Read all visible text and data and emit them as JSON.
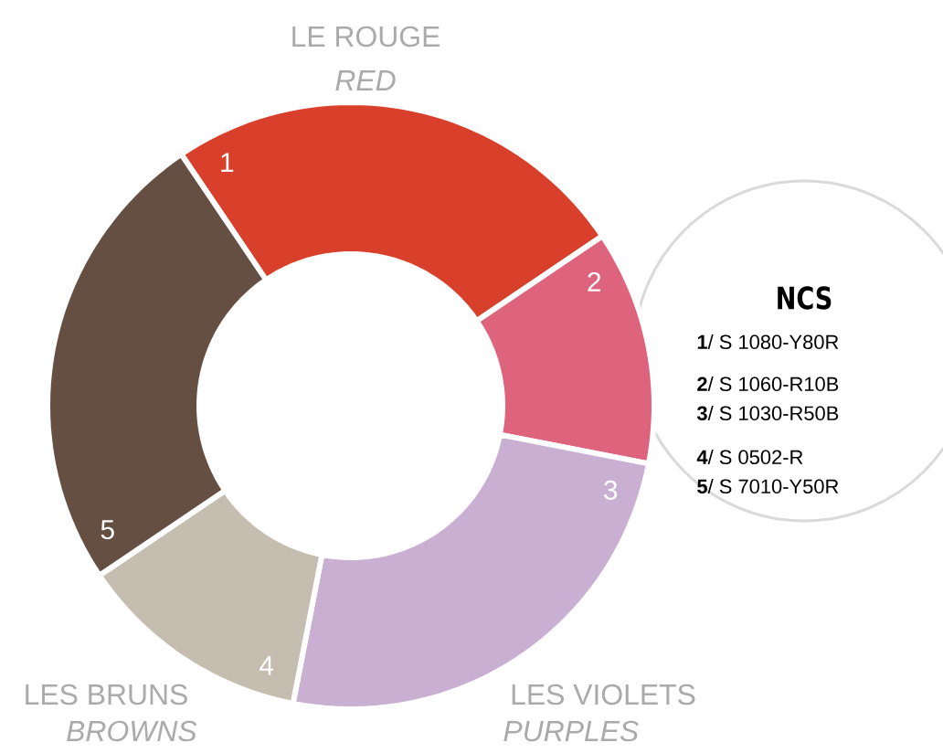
{
  "chart_data": {
    "type": "donut",
    "categories": [
      "1",
      "2",
      "3",
      "4",
      "5"
    ],
    "values": [
      25,
      12.5,
      25,
      12.5,
      25
    ],
    "colors": [
      "#d9402c",
      "#de637d",
      "#c9b0d2",
      "#c5bdb0",
      "#654f43"
    ],
    "annotations": [
      "LE ROUGE",
      "RED",
      "LES VIOLETS",
      "PURPLES",
      "LES BRUNS",
      "BROWNS",
      "NCS",
      "**1**/ S 1080-Y80R",
      "**2**/ S 1060-R10B",
      "**3**/ S 1030-R50B",
      "**4**/ S 0502-R",
      "**5**/ S 7010-Y50R"
    ]
  }
}
